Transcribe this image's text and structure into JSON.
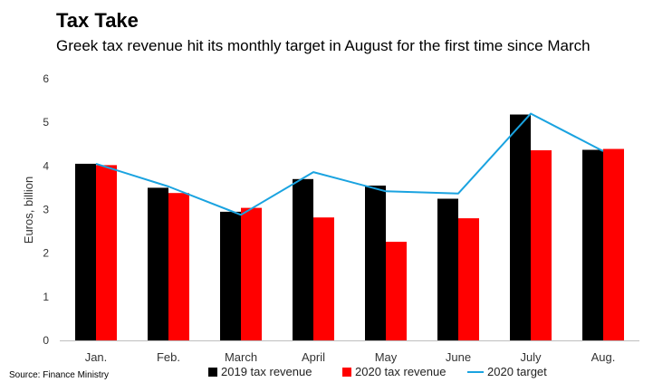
{
  "header": {
    "title": "Tax Take",
    "subtitle": "Greek tax revenue hit its monthly target in August for the first time since March"
  },
  "footer": {
    "source": "Source: Finance Ministry"
  },
  "chart_data": {
    "type": "bar",
    "title": "Tax Take",
    "subtitle": "Greek tax revenue hit its monthly target in August for the first time since March",
    "xlabel": "",
    "ylabel": "Euros, billion",
    "ylim": [
      0,
      6
    ],
    "yticks": [
      "0",
      "1",
      "2",
      "3",
      "4",
      "5",
      "6"
    ],
    "categories": [
      "Jan.",
      "Feb.",
      "March",
      "April",
      "May",
      "June",
      "July",
      "Aug."
    ],
    "series": [
      {
        "name": "2019 tax revenue",
        "kind": "bar",
        "color": "#000000",
        "values": [
          4.05,
          3.5,
          2.95,
          3.7,
          3.55,
          3.25,
          5.18,
          4.37
        ]
      },
      {
        "name": "2020 tax revenue",
        "kind": "bar",
        "color": "#ff0000",
        "values": [
          4.02,
          3.38,
          3.04,
          2.82,
          2.26,
          2.8,
          4.36,
          4.39
        ]
      },
      {
        "name": "2020 target",
        "kind": "line",
        "color": "#1aa3e0",
        "values": [
          4.05,
          3.53,
          2.88,
          3.86,
          3.42,
          3.37,
          5.2,
          4.34
        ]
      }
    ],
    "grid": false,
    "legend_position": "bottom"
  }
}
